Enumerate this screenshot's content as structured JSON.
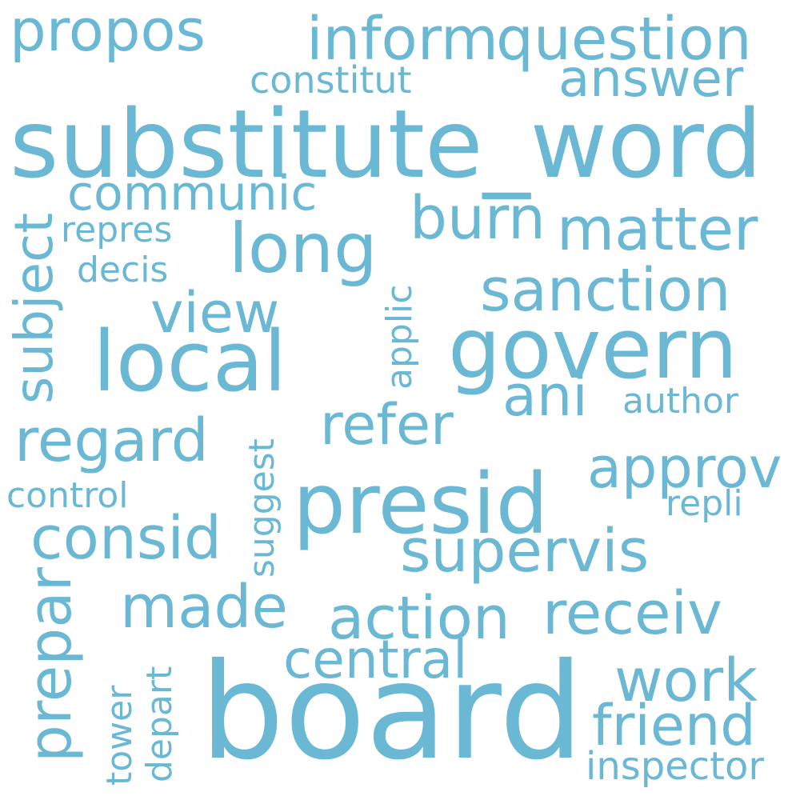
{
  "wordcloud": {
    "color": "#6bb8d4",
    "words": {
      "propos": "propos",
      "inform": "inform",
      "question": "question",
      "answer": "answer",
      "constitut": "constitut",
      "substitute_word": "substitute_word",
      "subject": "subject",
      "communic": "communic",
      "long": "long",
      "burn": "burn",
      "matter": "matter",
      "repres": "repres",
      "decis": "decis",
      "applic": "applic",
      "sanction": "sanction",
      "view": "view",
      "local": "local",
      "govern": "govern",
      "ani": "ani",
      "author": "author",
      "regard": "regard",
      "refer": "refer",
      "approv": "approv",
      "presid": "presid",
      "control": "control",
      "suggest": "suggest",
      "repli": "repli",
      "consid": "consid",
      "supervis": "supervis",
      "prepar": "prepar",
      "made": "made",
      "action": "action",
      "receiv": "receiv",
      "central": "central",
      "work": "work",
      "tower": "tower",
      "depart": "depart",
      "board": "board",
      "friend": "friend",
      "inspector": "inspector"
    }
  }
}
